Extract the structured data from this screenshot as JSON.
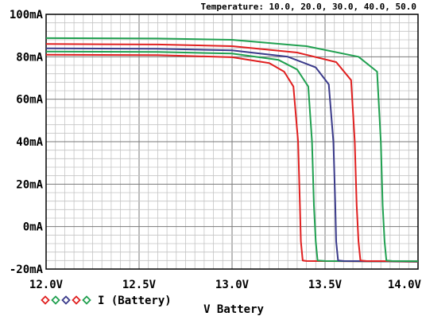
{
  "header": "Temperature: 10.0, 20.0, 30.0, 40.0, 50.0",
  "chart_data": {
    "type": "line",
    "xlabel": "V Battery",
    "ylabel": "",
    "xlim": [
      12.0,
      14.0
    ],
    "ylim": [
      -20,
      100
    ],
    "x_ticks": [
      "12.0V",
      "12.5V",
      "13.0V",
      "13.5V",
      "14.0V"
    ],
    "x_tick_values": [
      12.0,
      12.5,
      13.0,
      13.5,
      14.0
    ],
    "y_ticks": [
      "100mA",
      "80mA",
      "60mA",
      "40mA",
      "20mA",
      "0mA",
      "-20mA"
    ],
    "y_tick_values": [
      100,
      80,
      60,
      40,
      20,
      0,
      -20
    ],
    "grid": true,
    "legend": {
      "label": "I (Battery)",
      "placement": "bottom-left",
      "marker_colors": [
        "#e02020",
        "#20a050",
        "#3a3a8a",
        "#e02020",
        "#20a050"
      ]
    },
    "series": [
      {
        "color": "#e02020",
        "x": [
          12.0,
          12.6,
          13.0,
          13.2,
          13.28,
          13.33,
          13.355,
          13.365,
          13.37,
          13.38,
          13.4,
          14.0
        ],
        "y": [
          81.0,
          80.8,
          79.8,
          77.0,
          73.0,
          66.0,
          40.0,
          10.0,
          -7.0,
          -16.0,
          -16.2,
          -16.5
        ]
      },
      {
        "color": "#20a050",
        "x": [
          12.0,
          12.6,
          13.0,
          13.25,
          13.35,
          13.41,
          13.43,
          13.44,
          13.45,
          13.46,
          13.5,
          14.0
        ],
        "y": [
          82.5,
          82.3,
          81.5,
          78.5,
          74.0,
          66.0,
          40.0,
          10.0,
          -7.0,
          -16.0,
          -16.2,
          -16.5
        ]
      },
      {
        "color": "#3a3a8a",
        "x": [
          12.0,
          12.6,
          13.0,
          13.3,
          13.45,
          13.52,
          13.545,
          13.555,
          13.56,
          13.57,
          13.6,
          14.0
        ],
        "y": [
          84.0,
          83.8,
          83.0,
          80.0,
          75.0,
          67.0,
          40.0,
          10.0,
          -7.0,
          -16.0,
          -16.2,
          -16.5
        ]
      },
      {
        "color": "#e02020",
        "x": [
          12.0,
          12.6,
          13.0,
          13.35,
          13.56,
          13.64,
          13.66,
          13.67,
          13.68,
          13.69,
          13.72,
          14.0
        ],
        "y": [
          86.0,
          85.8,
          85.0,
          82.0,
          77.5,
          69.0,
          40.0,
          10.0,
          -7.0,
          -16.0,
          -16.2,
          -16.4
        ]
      },
      {
        "color": "#20a050",
        "x": [
          12.0,
          12.6,
          13.0,
          13.4,
          13.68,
          13.78,
          13.8,
          13.81,
          13.82,
          13.83,
          13.86,
          14.0
        ],
        "y": [
          88.8,
          88.6,
          88.0,
          85.0,
          80.0,
          73.0,
          40.0,
          10.0,
          -7.0,
          -16.0,
          -16.2,
          -16.3
        ]
      }
    ]
  }
}
